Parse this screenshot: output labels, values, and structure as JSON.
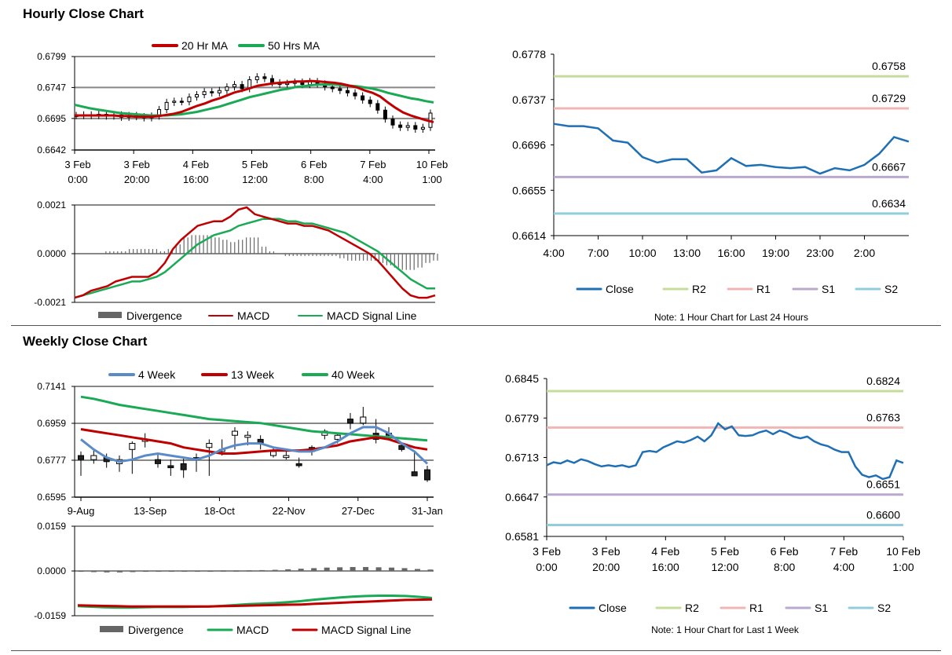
{
  "sections": {
    "hourly_title": "Hourly Close Chart",
    "weekly_title": "Weekly Close Chart"
  },
  "colors": {
    "ma_short": "#c00000",
    "ma_long": "#1aaa55",
    "ma_4w": "#5b8bc7",
    "close": "#1f6fb5",
    "r2": "#c6dc9a",
    "r1": "#f0b5b5",
    "s1": "#b9a9cf",
    "s2": "#93cddd",
    "grid": "#888888",
    "divergence": "#666666"
  },
  "chart_data": [
    {
      "id": "hourly_price",
      "type": "candlestick",
      "legend": [
        "20 Hr MA",
        "50 Hrs MA"
      ],
      "yticks": [
        "0.6799",
        "0.6747",
        "0.6695",
        "0.6642"
      ],
      "ylim": [
        0.6642,
        0.6799
      ],
      "xticks": [
        [
          "3 Feb",
          "0:00"
        ],
        [
          "3 Feb",
          "20:00"
        ],
        [
          "4 Feb",
          "16:00"
        ],
        [
          "5 Feb",
          "12:00"
        ],
        [
          "6 Feb",
          "8:00"
        ],
        [
          "7 Feb",
          "4:00"
        ],
        [
          "10 Feb",
          "1:00"
        ]
      ],
      "close": [
        0.67,
        0.6701,
        0.67,
        0.6702,
        0.6699,
        0.6701,
        0.6697,
        0.67,
        0.6698,
        0.6696,
        0.6699,
        0.671,
        0.6722,
        0.6724,
        0.6723,
        0.6731,
        0.6735,
        0.674,
        0.6738,
        0.6742,
        0.6748,
        0.6752,
        0.6745,
        0.676,
        0.6765,
        0.6762,
        0.6755,
        0.6752,
        0.6754,
        0.6756,
        0.6752,
        0.6757,
        0.6753,
        0.6748,
        0.6745,
        0.6742,
        0.6738,
        0.6733,
        0.6726,
        0.672,
        0.6709,
        0.6694,
        0.6684,
        0.668,
        0.6683,
        0.6677,
        0.668,
        0.6704
      ],
      "ma20": [
        0.67,
        0.67,
        0.67,
        0.67,
        0.67,
        0.67,
        0.6699,
        0.6699,
        0.6698,
        0.6698,
        0.6698,
        0.6699,
        0.6701,
        0.6703,
        0.6706,
        0.6711,
        0.6716,
        0.672,
        0.6725,
        0.6729,
        0.6734,
        0.6739,
        0.6742,
        0.6746,
        0.675,
        0.6752,
        0.6754,
        0.6755,
        0.6756,
        0.6757,
        0.6757,
        0.6758,
        0.6757,
        0.6756,
        0.6755,
        0.6753,
        0.675,
        0.6747,
        0.6742,
        0.6738,
        0.6732,
        0.6722,
        0.6713,
        0.6705,
        0.67,
        0.6696,
        0.6692,
        0.6689
      ],
      "ma50": [
        0.6718,
        0.6715,
        0.6712,
        0.671,
        0.6708,
        0.6706,
        0.6704,
        0.6703,
        0.6702,
        0.6701,
        0.67,
        0.67,
        0.67,
        0.6701,
        0.6702,
        0.6704,
        0.6706,
        0.6709,
        0.6712,
        0.6715,
        0.6719,
        0.6723,
        0.6727,
        0.6731,
        0.6734,
        0.6737,
        0.674,
        0.6743,
        0.6745,
        0.6748,
        0.6749,
        0.6751,
        0.6752,
        0.6752,
        0.6752,
        0.6751,
        0.675,
        0.6749,
        0.6747,
        0.6745,
        0.6742,
        0.6738,
        0.6735,
        0.6732,
        0.6729,
        0.6727,
        0.6724,
        0.6722
      ]
    },
    {
      "id": "hourly_macd",
      "type": "line",
      "legend": [
        "Divergence",
        "MACD",
        "MACD Signal Line"
      ],
      "yticks": [
        "0.0021",
        "0.0000",
        "-0.0021"
      ],
      "ylim": [
        -0.0021,
        0.0021
      ],
      "macd": [
        -0.0019,
        -0.0018,
        -0.0016,
        -0.0015,
        -0.0014,
        -0.0012,
        -0.0011,
        -0.001,
        -0.001,
        -0.001,
        -0.0008,
        -0.0004,
        0.0002,
        0.0006,
        0.0009,
        0.0012,
        0.0013,
        0.0014,
        0.0014,
        0.0016,
        0.0019,
        0.002,
        0.0017,
        0.0016,
        0.0015,
        0.0014,
        0.0013,
        0.0013,
        0.0012,
        0.0012,
        0.0011,
        0.001,
        0.0008,
        0.0006,
        0.0004,
        0.0002,
        0.0,
        -0.0003,
        -0.0007,
        -0.0011,
        -0.0015,
        -0.0018,
        -0.0019,
        -0.0019,
        -0.0018
      ],
      "signal": [
        -0.0019,
        -0.0018,
        -0.0017,
        -0.0016,
        -0.0015,
        -0.0014,
        -0.0013,
        -0.0012,
        -0.0012,
        -0.0011,
        -0.001,
        -0.0008,
        -0.0005,
        -0.0002,
        0.0001,
        0.0004,
        0.0006,
        0.0008,
        0.0009,
        0.001,
        0.0012,
        0.0013,
        0.0014,
        0.0015,
        0.0015,
        0.0015,
        0.0014,
        0.0014,
        0.0013,
        0.0013,
        0.0012,
        0.0011,
        0.001,
        0.0009,
        0.0007,
        0.0005,
        0.0003,
        0.0001,
        -0.0002,
        -0.0005,
        -0.0008,
        -0.0011,
        -0.0013,
        -0.0015,
        -0.0015
      ]
    },
    {
      "id": "hourly_24h",
      "type": "line",
      "yticks": [
        "0.6778",
        "0.6737",
        "0.6696",
        "0.6655",
        "0.6614"
      ],
      "ylim": [
        0.6614,
        0.6778
      ],
      "xticks": [
        "4:00",
        "7:00",
        "10:00",
        "13:00",
        "16:00",
        "19:00",
        "23:00",
        "2:00"
      ],
      "close": [
        0.6715,
        0.6713,
        0.6713,
        0.6711,
        0.67,
        0.6698,
        0.6685,
        0.668,
        0.6683,
        0.6683,
        0.6671,
        0.6673,
        0.6684,
        0.6677,
        0.6678,
        0.6676,
        0.6675,
        0.6676,
        0.667,
        0.6675,
        0.6673,
        0.6678,
        0.6688,
        0.6703,
        0.6699
      ],
      "levels": {
        "R2": 0.6758,
        "R1": 0.6729,
        "S1": 0.6667,
        "S2": 0.6634
      },
      "level_labels": [
        "0.6758",
        "0.6729",
        "0.6667",
        "0.6634"
      ],
      "legend": [
        "Close",
        "R2",
        "R1",
        "S1",
        "S2"
      ],
      "note": "Note: 1 Hour Chart for Last 24 Hours"
    },
    {
      "id": "weekly_price",
      "type": "candlestick",
      "legend": [
        "4 Week",
        "13 Week",
        "40 Week"
      ],
      "yticks": [
        "0.7141",
        "0.6959",
        "0.6777",
        "0.6595"
      ],
      "ylim": [
        0.6595,
        0.7141
      ],
      "xticks": [
        "9-Aug",
        "13-Sep",
        "18-Oct",
        "22-Nov",
        "27-Dec",
        "31-Jan"
      ],
      "candles": [
        [
          0.68,
          0.678,
          0.682,
          0.67
        ],
        [
          0.678,
          0.68,
          0.6825,
          0.676
        ],
        [
          0.679,
          0.677,
          0.681,
          0.674
        ],
        [
          0.676,
          0.678,
          0.68,
          0.672
        ],
        [
          0.683,
          0.686,
          0.687,
          0.671
        ],
        [
          0.687,
          0.688,
          0.691,
          0.684
        ],
        [
          0.678,
          0.676,
          0.681,
          0.674
        ],
        [
          0.675,
          0.674,
          0.678,
          0.67
        ],
        [
          0.676,
          0.673,
          0.679,
          0.669
        ],
        [
          0.679,
          0.678,
          0.681,
          0.672
        ],
        [
          0.684,
          0.686,
          0.688,
          0.67
        ],
        [
          0.682,
          0.683,
          0.688,
          0.68
        ],
        [
          0.69,
          0.692,
          0.694,
          0.683
        ],
        [
          0.689,
          0.69,
          0.692,
          0.685
        ],
        [
          0.688,
          0.686,
          0.69,
          0.683
        ],
        [
          0.68,
          0.682,
          0.684,
          0.679
        ],
        [
          0.679,
          0.68,
          0.682,
          0.678
        ],
        [
          0.676,
          0.675,
          0.679,
          0.674
        ],
        [
          0.684,
          0.682,
          0.685,
          0.68
        ],
        [
          0.69,
          0.692,
          0.693,
          0.688
        ],
        [
          0.688,
          0.69,
          0.691,
          0.686
        ],
        [
          0.698,
          0.696,
          0.701,
          0.693
        ],
        [
          0.696,
          0.699,
          0.704,
          0.695
        ],
        [
          0.691,
          0.688,
          0.698,
          0.686
        ],
        [
          0.691,
          0.69,
          0.694,
          0.688
        ],
        [
          0.685,
          0.683,
          0.686,
          0.682
        ],
        [
          0.672,
          0.67,
          0.682,
          0.67
        ],
        [
          0.673,
          0.668,
          0.675,
          0.667
        ]
      ],
      "ma4": [
        0.688,
        0.683,
        0.679,
        0.677,
        0.678,
        0.68,
        0.681,
        0.68,
        0.679,
        0.678,
        0.68,
        0.683,
        0.685,
        0.686,
        0.686,
        0.684,
        0.683,
        0.682,
        0.682,
        0.684,
        0.687,
        0.691,
        0.694,
        0.694,
        0.691,
        0.686,
        0.682,
        0.676
      ],
      "ma13": [
        0.693,
        0.692,
        0.691,
        0.69,
        0.689,
        0.688,
        0.687,
        0.686,
        0.684,
        0.683,
        0.682,
        0.681,
        0.681,
        0.6815,
        0.682,
        0.6825,
        0.6825,
        0.6825,
        0.683,
        0.684,
        0.685,
        0.687,
        0.688,
        0.689,
        0.688,
        0.686,
        0.684,
        0.683
      ],
      "ma40": [
        0.709,
        0.708,
        0.7065,
        0.705,
        0.704,
        0.703,
        0.702,
        0.701,
        0.7,
        0.699,
        0.698,
        0.6975,
        0.697,
        0.6965,
        0.696,
        0.695,
        0.694,
        0.693,
        0.692,
        0.6915,
        0.691,
        0.6905,
        0.69,
        0.6895,
        0.689,
        0.6885,
        0.688,
        0.6875
      ]
    },
    {
      "id": "weekly_macd",
      "type": "line",
      "legend": [
        "Divergence",
        "MACD",
        "MACD Signal Line"
      ],
      "yticks": [
        "0.0159",
        "0.0000",
        "-0.0159"
      ],
      "ylim": [
        -0.0159,
        0.0159
      ],
      "divergence": [
        -0.0003,
        -0.0004,
        -0.0005,
        -0.0005,
        -0.0004,
        -0.0003,
        -0.0002,
        -0.0001,
        -0.0001,
        -0.0001,
        0.0,
        0.0001,
        0.0001,
        0.0002,
        0.0003,
        0.0004,
        0.0006,
        0.0008,
        0.001,
        0.0012,
        0.0013,
        0.0014,
        0.0014,
        0.0013,
        0.0012,
        0.001,
        0.0007,
        0.0005
      ],
      "macd": [
        -0.0125,
        -0.0127,
        -0.0129,
        -0.013,
        -0.013,
        -0.0129,
        -0.0128,
        -0.0128,
        -0.0128,
        -0.0127,
        -0.0126,
        -0.0124,
        -0.0121,
        -0.0118,
        -0.0116,
        -0.0114,
        -0.0111,
        -0.0107,
        -0.0102,
        -0.0098,
        -0.0094,
        -0.0091,
        -0.0089,
        -0.0088,
        -0.0088,
        -0.0089,
        -0.0092,
        -0.0096
      ],
      "signal": [
        -0.0122,
        -0.0123,
        -0.0124,
        -0.0125,
        -0.0126,
        -0.0126,
        -0.0126,
        -0.0126,
        -0.0126,
        -0.0126,
        -0.0126,
        -0.0125,
        -0.0124,
        -0.0123,
        -0.0122,
        -0.0121,
        -0.012,
        -0.0119,
        -0.0117,
        -0.0115,
        -0.0113,
        -0.0111,
        -0.0109,
        -0.0107,
        -0.0105,
        -0.0103,
        -0.0102,
        -0.0101
      ]
    },
    {
      "id": "weekly_1w",
      "type": "line",
      "yticks": [
        "0.6845",
        "0.6779",
        "0.6713",
        "0.6647",
        "0.6581"
      ],
      "ylim": [
        0.6581,
        0.6845
      ],
      "xticks": [
        [
          "3 Feb",
          "0:00"
        ],
        [
          "3 Feb",
          "20:00"
        ],
        [
          "4 Feb",
          "16:00"
        ],
        [
          "5 Feb",
          "12:00"
        ],
        [
          "6 Feb",
          "8:00"
        ],
        [
          "7 Feb",
          "4:00"
        ],
        [
          "10 Feb",
          "1:00"
        ]
      ],
      "close": [
        0.67,
        0.6705,
        0.6703,
        0.6708,
        0.6704,
        0.671,
        0.6707,
        0.6702,
        0.6698,
        0.67,
        0.6698,
        0.67,
        0.6697,
        0.67,
        0.6722,
        0.6724,
        0.6722,
        0.673,
        0.6735,
        0.674,
        0.6738,
        0.6742,
        0.6748,
        0.674,
        0.675,
        0.677,
        0.676,
        0.6765,
        0.675,
        0.6749,
        0.675,
        0.6755,
        0.6758,
        0.6752,
        0.6758,
        0.6754,
        0.6748,
        0.6745,
        0.6748,
        0.674,
        0.6735,
        0.6732,
        0.6726,
        0.6722,
        0.6722,
        0.6698,
        0.6684,
        0.668,
        0.6683,
        0.6677,
        0.668,
        0.6708,
        0.6704
      ],
      "levels": {
        "R2": 0.6824,
        "R1": 0.6763,
        "S1": 0.6651,
        "S2": 0.66
      },
      "level_labels": [
        "0.6824",
        "0.6763",
        "0.6651",
        "0.6600"
      ],
      "legend": [
        "Close",
        "R2",
        "R1",
        "S1",
        "S2"
      ],
      "note": "Note: 1 Hour Chart for Last 1 Week"
    }
  ]
}
